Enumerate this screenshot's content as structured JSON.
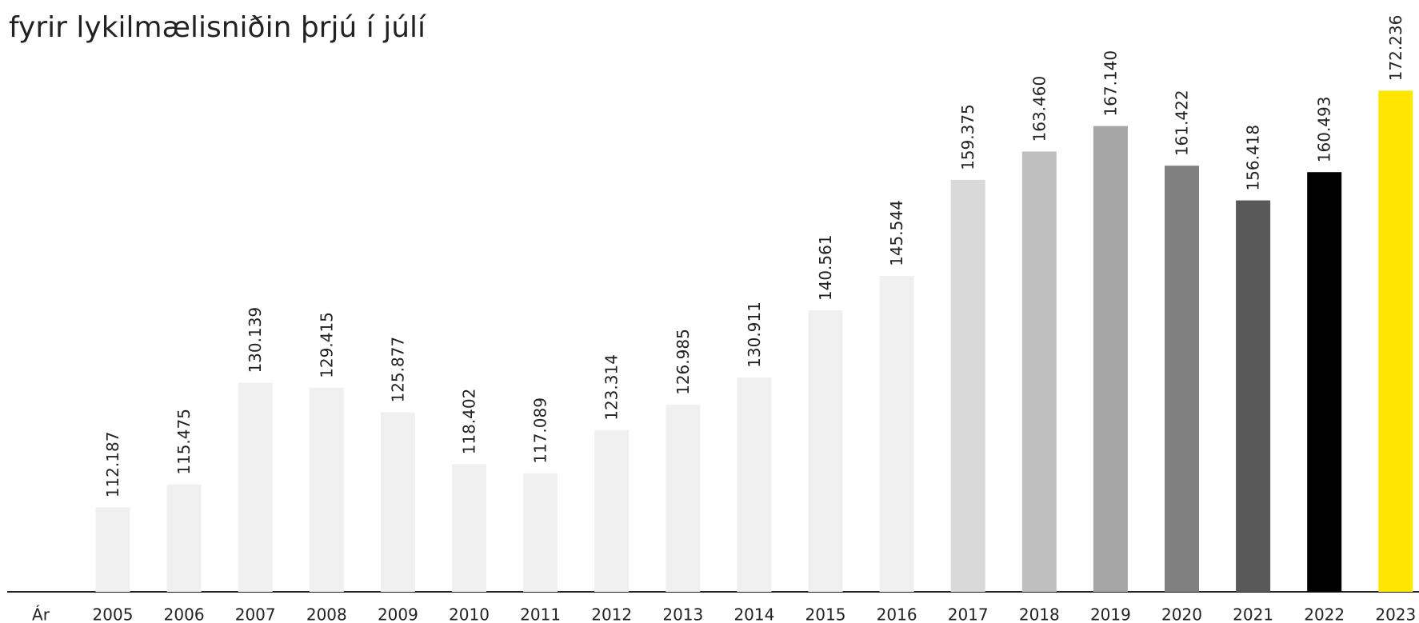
{
  "chart_data": {
    "type": "bar",
    "title": "fyrir lykilmælisniðin þrjú í júlí",
    "x_label": "Ár",
    "categories": [
      "2005",
      "2006",
      "2007",
      "2008",
      "2009",
      "2010",
      "2011",
      "2012",
      "2013",
      "2014",
      "2015",
      "2016",
      "2017",
      "2018",
      "2019",
      "2020",
      "2021",
      "2022",
      "2023"
    ],
    "values": [
      112187,
      115475,
      130139,
      129415,
      125877,
      118402,
      117089,
      123314,
      126985,
      130911,
      140561,
      145544,
      159375,
      163460,
      167140,
      161422,
      156418,
      160493,
      172236
    ],
    "value_labels": [
      "112.187",
      "115.475",
      "130.139",
      "129.415",
      "125.877",
      "118.402",
      "117.089",
      "123.314",
      "126.985",
      "130.911",
      "140.561",
      "145.544",
      "159.375",
      "163.460",
      "167.140",
      "161.422",
      "156.418",
      "160.493",
      "172.236"
    ],
    "colors": [
      "#f0f0f0",
      "#f0f0f0",
      "#f0f0f0",
      "#f0f0f0",
      "#f0f0f0",
      "#f0f0f0",
      "#f0f0f0",
      "#f0f0f0",
      "#f0f0f0",
      "#f0f0f0",
      "#f0f0f0",
      "#f0f0f0",
      "#d9d9d9",
      "#bfbfbf",
      "#a6a6a6",
      "#808080",
      "#595959",
      "#000000",
      "#ffe600"
    ],
    "ylim": [
      100000,
      180000
    ]
  }
}
